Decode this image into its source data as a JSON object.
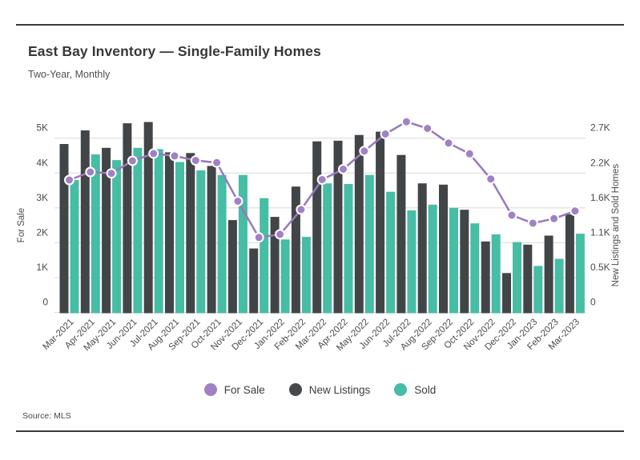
{
  "header": {
    "title": "East Bay Inventory — Single-Family Homes",
    "subtitle": "Two-Year, Monthly"
  },
  "footer": {
    "source": "Source: MLS"
  },
  "legend": {
    "position": "bottom",
    "items": [
      {
        "label": "For Sale",
        "color": "#a181c6",
        "marker": "circle"
      },
      {
        "label": "New Listings",
        "color": "#46494c",
        "marker": "circle"
      },
      {
        "label": "Sold",
        "color": "#46bda4",
        "marker": "circle"
      }
    ]
  },
  "colors": {
    "for_sale_line": "#9779bd",
    "for_sale_dot": "#a181c6",
    "new_listings_bar": "#424548",
    "sold_bar": "#46bda4",
    "gridline": "#d8d8d8",
    "tick_text": "#4b4b4b",
    "rule": "#3a3a3a"
  },
  "chart_data": {
    "type": "bar",
    "subtype": "grouped bars with overlaid line, dual y-axis",
    "title": "East Bay Inventory — Single-Family Homes",
    "subtitle": "Two-Year, Monthly",
    "grid": true,
    "legend_position": "bottom",
    "categories": [
      "Mar-2021",
      "Apr-2021",
      "May-2021",
      "Jun-2021",
      "Jul-2021",
      "Aug-2021",
      "Sep-2021",
      "Oct-2021",
      "Nov-2021",
      "Dec-2021",
      "Jan-2022",
      "Feb-2022",
      "Mar-2022",
      "Apr-2022",
      "May-2022",
      "Jun-2022",
      "Jul-2022",
      "Aug-2022",
      "Sep-2022",
      "Oct-2022",
      "Nov-2022",
      "Dec-2022",
      "Jan-2023",
      "Feb-2023",
      "Mar-2023"
    ],
    "left_axis": {
      "label": "For Sale",
      "ticks": [
        "0",
        "1K",
        "2K",
        "3K",
        "4K",
        "5K"
      ],
      "range": [
        0,
        5000
      ]
    },
    "right_axis": {
      "label": "New Listings and Sold Homes",
      "ticks": [
        "0",
        "0.5K",
        "1.1K",
        "1.6K",
        "2.2K",
        "2.7K"
      ],
      "range": [
        0,
        2700
      ]
    },
    "series": [
      {
        "name": "For Sale",
        "type": "line",
        "axis": "left",
        "color": "#9779bd",
        "values": [
          3800,
          4030,
          3990,
          4350,
          4560,
          4490,
          4360,
          4300,
          3190,
          2150,
          2240,
          2950,
          3810,
          4110,
          4630,
          5120,
          5470,
          5280,
          4860,
          4550,
          3830,
          2790,
          2560,
          2690,
          2910
        ]
      },
      {
        "name": "New Listings",
        "type": "bar",
        "axis": "right",
        "color": "#424548",
        "values": [
          2610,
          2820,
          2550,
          2930,
          2950,
          2480,
          2470,
          2270,
          1430,
          990,
          1480,
          1950,
          2650,
          2660,
          2750,
          2800,
          2440,
          2000,
          1980,
          1590,
          1100,
          610,
          1050,
          1190,
          1520
        ]
      },
      {
        "name": "Sold",
        "type": "bar",
        "axis": "right",
        "color": "#46bda4",
        "values": [
          2050,
          2450,
          2360,
          2550,
          2530,
          2330,
          2200,
          2130,
          2130,
          1770,
          1130,
          1170,
          2000,
          1990,
          2130,
          1870,
          1580,
          1670,
          1620,
          1380,
          1210,
          1090,
          720,
          830,
          1220
        ]
      }
    ]
  }
}
